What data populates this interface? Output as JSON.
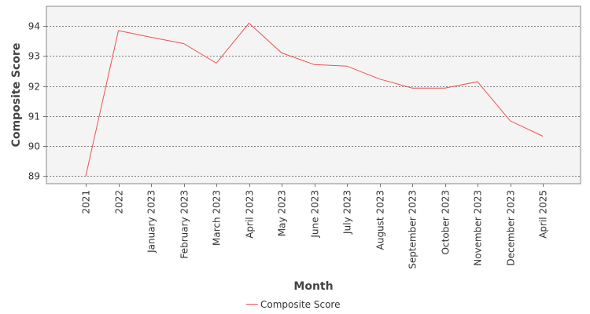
{
  "chart_data": {
    "type": "line",
    "title": "",
    "xlabel": "Month",
    "ylabel": "Composite Score",
    "categories": [
      "2021",
      "2022",
      "January 2023",
      "February 2023",
      "March 2023",
      "April 2023",
      "May 2023",
      "June 2023",
      "July 2023",
      "August 2023",
      "September 2023",
      "October 2023",
      "November 2023",
      "December 2023",
      "April 2025"
    ],
    "series": [
      {
        "name": "Composite Score",
        "color": "#f05050",
        "values": [
          89.0,
          93.84,
          93.62,
          93.41,
          92.76,
          94.09,
          93.1,
          92.71,
          92.66,
          92.23,
          91.93,
          91.93,
          92.14,
          90.84,
          90.33
        ]
      }
    ],
    "ylim": [
      88.75,
      94.65
    ],
    "yticks": [
      89,
      90,
      91,
      92,
      93,
      94
    ],
    "grid": true,
    "legend": "bottom-center",
    "plot_background": "#f4f4f4"
  }
}
